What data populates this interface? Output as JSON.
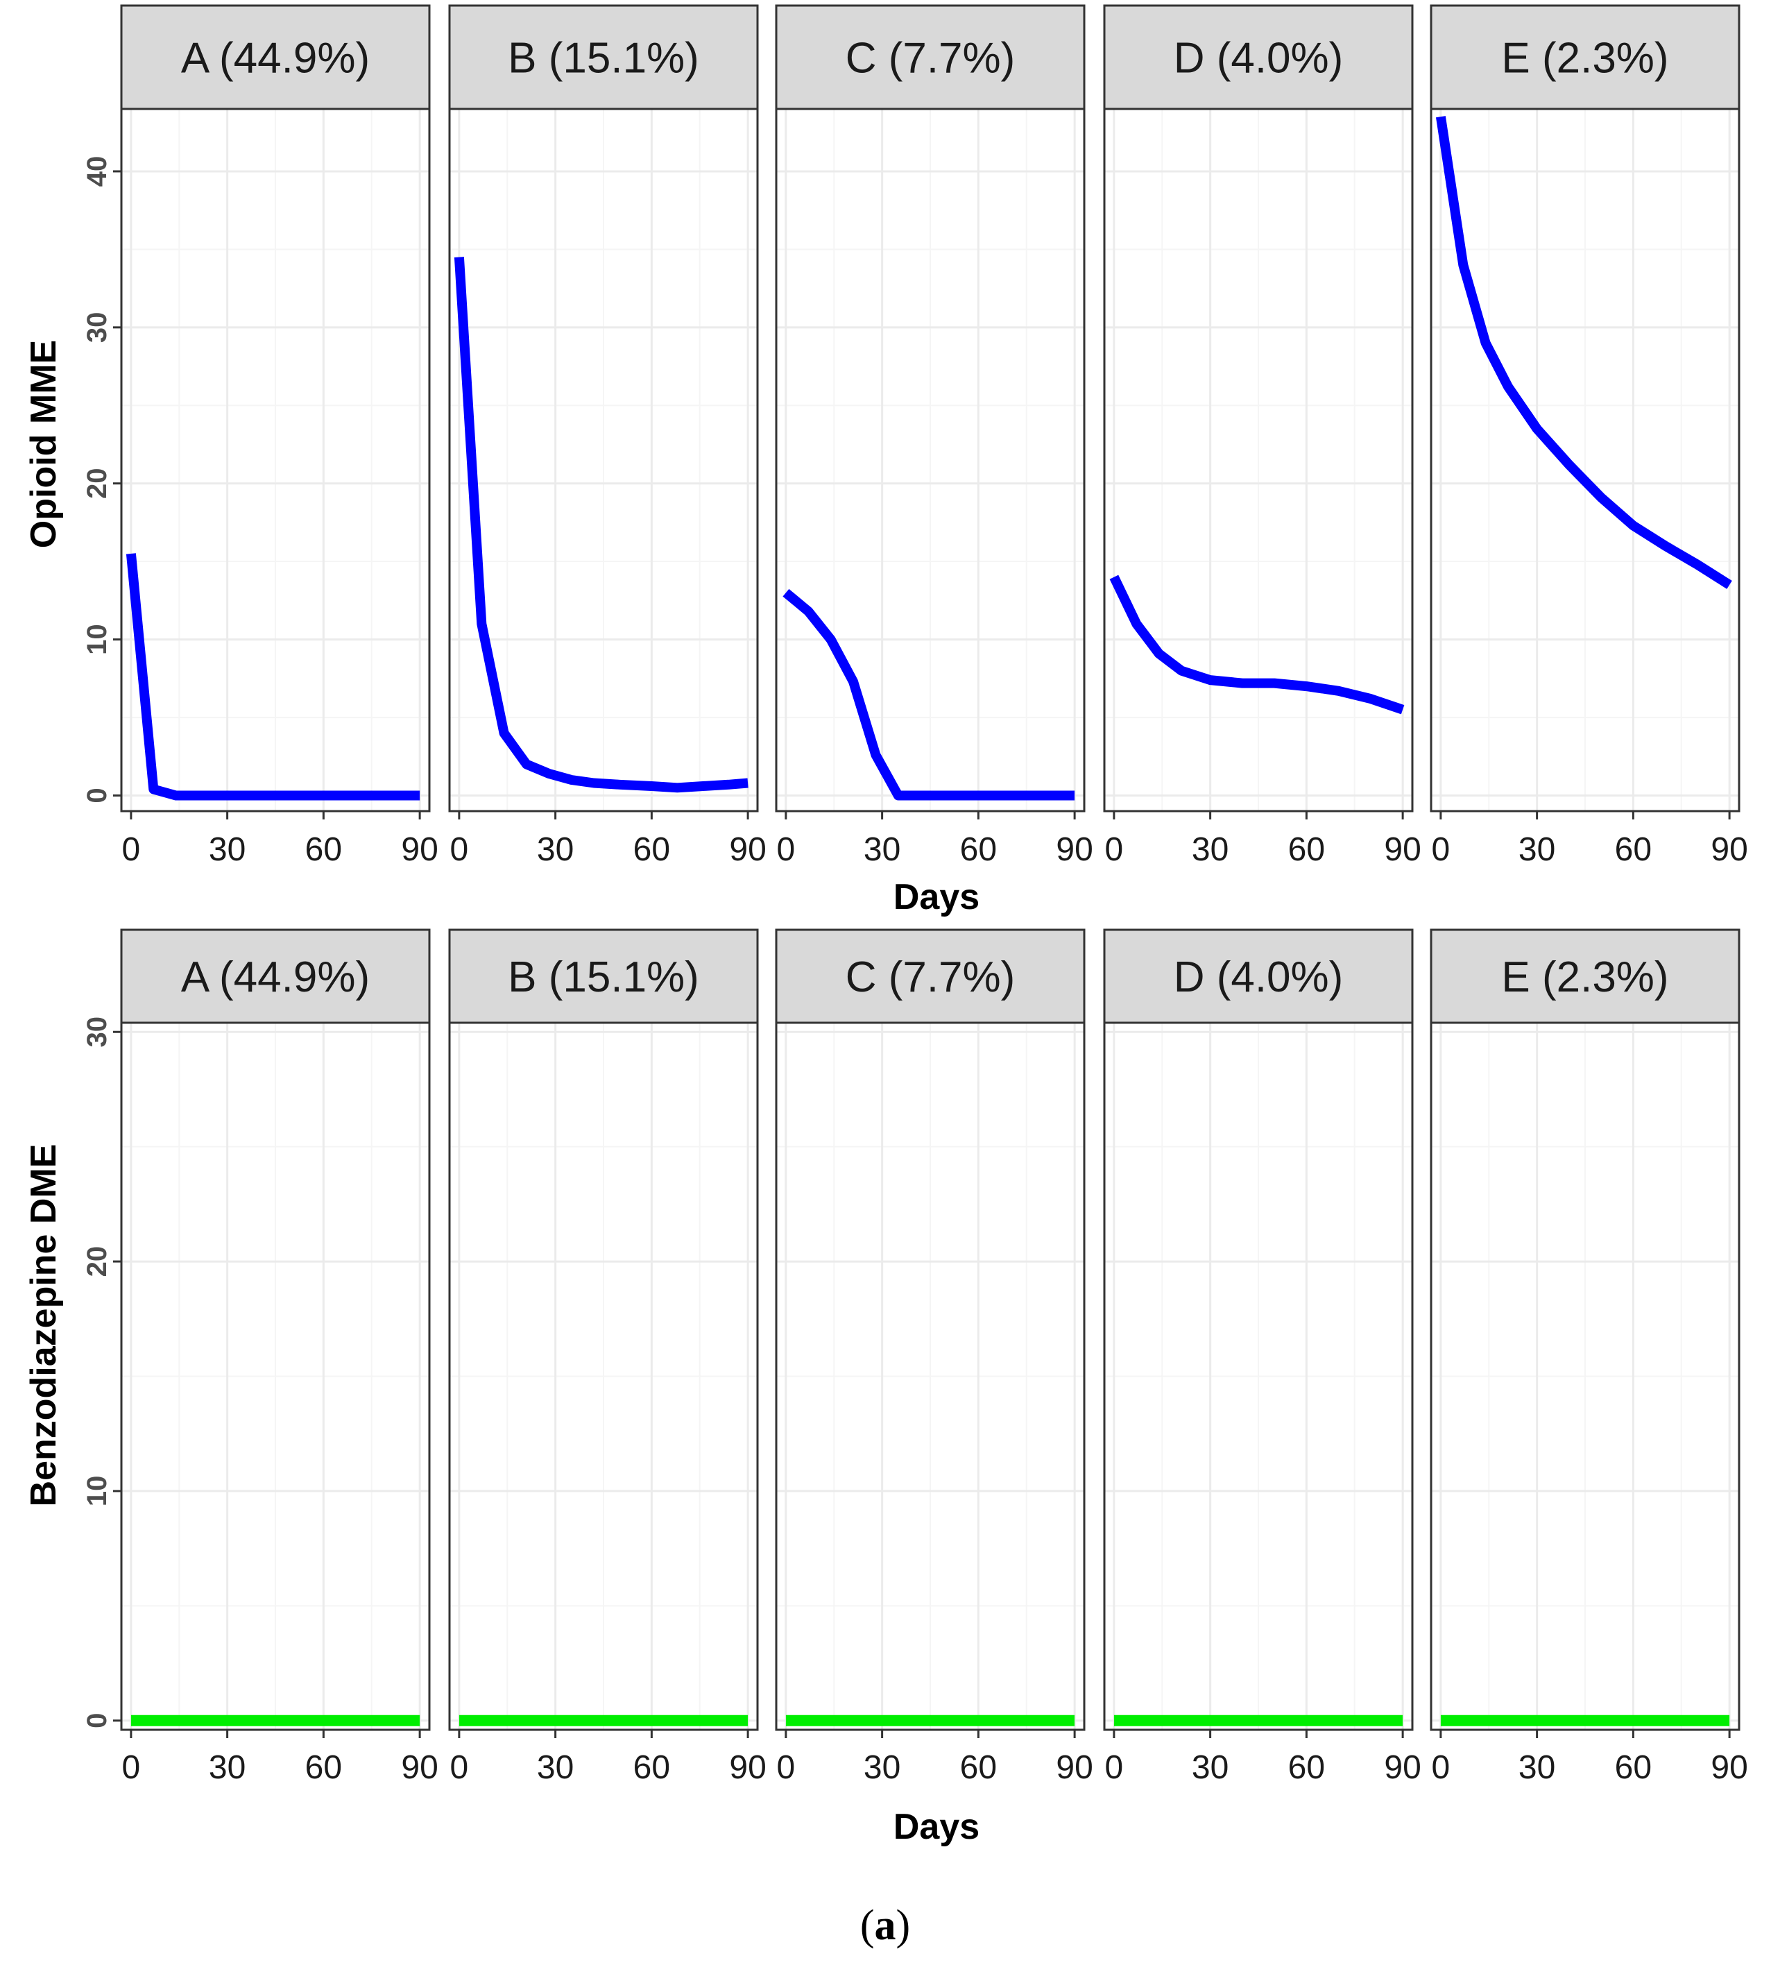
{
  "figure": {
    "caption_open": "(",
    "caption_letter": "a",
    "caption_close": ")"
  },
  "colors": {
    "opioid_line": "#0000ff",
    "benzo_line": "#00ee00",
    "strip_fill": "#d9d9d9",
    "panel_border": "#333333",
    "grid_major": "#ebebeb",
    "grid_minor": "#f5f5f5"
  },
  "chart_data": [
    {
      "type": "line",
      "facet_row": "opioid",
      "ylabel": "Opioid MME",
      "xlabel": "Days",
      "xlim": [
        -3,
        93
      ],
      "ylim": [
        -1,
        44
      ],
      "x_ticks": [
        0,
        30,
        60,
        90
      ],
      "y_ticks": [
        0,
        10,
        20,
        30,
        40
      ],
      "grid": true,
      "facets": [
        "A (44.9%)",
        "B (15.1%)",
        "C (7.7%)",
        "D (4.0%)",
        "E (2.3%)"
      ],
      "series": [
        {
          "facet": "A (44.9%)",
          "x": [
            0,
            7,
            14,
            21,
            30,
            40,
            50,
            60,
            70,
            80,
            90
          ],
          "y": [
            15.5,
            0.4,
            0.0,
            0.0,
            0.0,
            0.0,
            0.0,
            0.0,
            0.0,
            0.0,
            0.0
          ]
        },
        {
          "facet": "B (15.1%)",
          "x": [
            0,
            7,
            14,
            21,
            28,
            35,
            42,
            50,
            60,
            68,
            76,
            84,
            90
          ],
          "y": [
            34.5,
            11.0,
            4.0,
            2.0,
            1.4,
            1.0,
            0.8,
            0.7,
            0.6,
            0.5,
            0.6,
            0.7,
            0.8
          ]
        },
        {
          "facet": "C (7.7%)",
          "x": [
            0,
            7,
            14,
            21,
            28,
            35,
            38,
            45,
            60,
            75,
            90
          ],
          "y": [
            13.0,
            11.8,
            10.0,
            7.3,
            2.6,
            0.0,
            0.0,
            0.0,
            0.0,
            0.0,
            0.0
          ]
        },
        {
          "facet": "D (4.0%)",
          "x": [
            0,
            7,
            14,
            21,
            30,
            40,
            50,
            60,
            70,
            80,
            90
          ],
          "y": [
            14.0,
            11.0,
            9.1,
            8.0,
            7.4,
            7.2,
            7.2,
            7.0,
            6.7,
            6.2,
            5.5
          ]
        },
        {
          "facet": "E (2.3%)",
          "x": [
            0,
            7,
            14,
            21,
            30,
            40,
            50,
            60,
            70,
            80,
            90
          ],
          "y": [
            43.5,
            34.0,
            29.0,
            26.2,
            23.5,
            21.2,
            19.1,
            17.3,
            16.0,
            14.8,
            13.5
          ]
        }
      ]
    },
    {
      "type": "line",
      "facet_row": "benzodiazepine",
      "ylabel": "Benzodiazepine DME",
      "xlabel": "Days",
      "xlim": [
        -3,
        93
      ],
      "ylim": [
        -0.4,
        30.4
      ],
      "x_ticks": [
        0,
        30,
        60,
        90
      ],
      "y_ticks": [
        0,
        10,
        20,
        30
      ],
      "grid": true,
      "facets": [
        "A (44.9%)",
        "B (15.1%)",
        "C (7.7%)",
        "D (4.0%)",
        "E (2.3%)"
      ],
      "series": [
        {
          "facet": "A (44.9%)",
          "x": [
            0,
            30,
            60,
            90
          ],
          "y": [
            0,
            0,
            0,
            0
          ]
        },
        {
          "facet": "B (15.1%)",
          "x": [
            0,
            30,
            60,
            90
          ],
          "y": [
            0,
            0,
            0,
            0
          ]
        },
        {
          "facet": "C (7.7%)",
          "x": [
            0,
            30,
            60,
            90
          ],
          "y": [
            0,
            0,
            0,
            0
          ]
        },
        {
          "facet": "D (4.0%)",
          "x": [
            0,
            30,
            60,
            90
          ],
          "y": [
            0,
            0,
            0,
            0
          ]
        },
        {
          "facet": "E (2.3%)",
          "x": [
            0,
            30,
            60,
            90
          ],
          "y": [
            0,
            0,
            0,
            0
          ]
        }
      ]
    }
  ]
}
